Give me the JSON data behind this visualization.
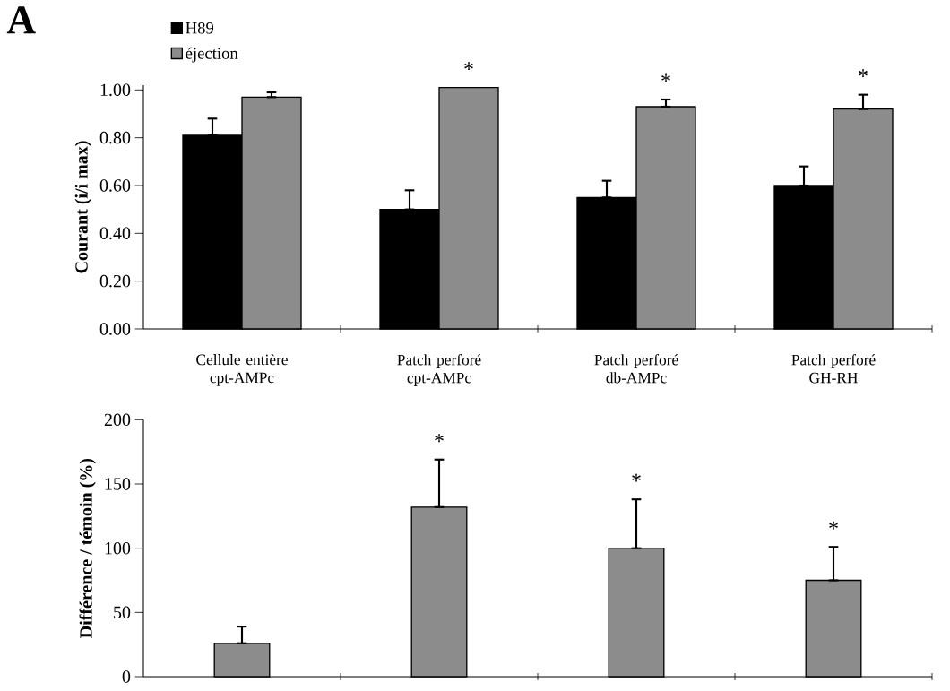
{
  "chart_data": [
    {
      "type": "bar",
      "ylabel": "Courant (i/i max)",
      "categories": [
        "Cellule entière cpt-AMPc",
        "Patch perforé cpt-AMPc",
        "Patch perforé db-AMPc",
        "Patch perforé GH-RH"
      ],
      "series": [
        {
          "name": "H89",
          "color": "#000000",
          "values": [
            0.81,
            0.5,
            0.55,
            0.6
          ],
          "errors": [
            [
              0.81,
              0.88
            ],
            [
              0.5,
              0.58
            ],
            [
              0.55,
              0.62
            ],
            [
              0.6,
              0.68
            ]
          ]
        },
        {
          "name": "éjection",
          "color": "#8c8c8c",
          "values": [
            0.97,
            1.01,
            0.93,
            0.92
          ],
          "errors": [
            [
              0.97,
              0.99
            ],
            null,
            [
              0.93,
              0.96
            ],
            [
              0.92,
              0.98
            ]
          ]
        }
      ],
      "ylim": [
        0,
        1.02
      ],
      "yticks": [
        {
          "value": 0,
          "label": "0.00"
        },
        {
          "value": 0.2,
          "label": "0.20"
        },
        {
          "value": 0.4,
          "label": "0.40"
        },
        {
          "value": 0.6,
          "label": "0.60"
        },
        {
          "value": 0.8,
          "label": "0.80"
        },
        {
          "value": 1,
          "label": "1.00"
        }
      ],
      "legend": "top left",
      "grid": false,
      "title": "A",
      "annotations": [
        "*",
        "*",
        "*"
      ]
    },
    {
      "type": "bar",
      "ylabel": "Différence / témoin (%)",
      "categories": [
        null,
        null,
        null,
        null
      ],
      "values": [
        26,
        132,
        100,
        75
      ],
      "color": "#8c8c8c",
      "errors": [
        [
          26,
          39
        ],
        [
          132,
          169
        ],
        [
          100,
          138
        ],
        [
          75,
          101
        ]
      ],
      "ylim": [
        0,
        200
      ],
      "yticks": [
        0,
        50,
        100,
        150,
        200
      ],
      "tick_labels": "y",
      "grid": false,
      "annotations": [
        "*",
        "*",
        "*"
      ]
    }
  ]
}
